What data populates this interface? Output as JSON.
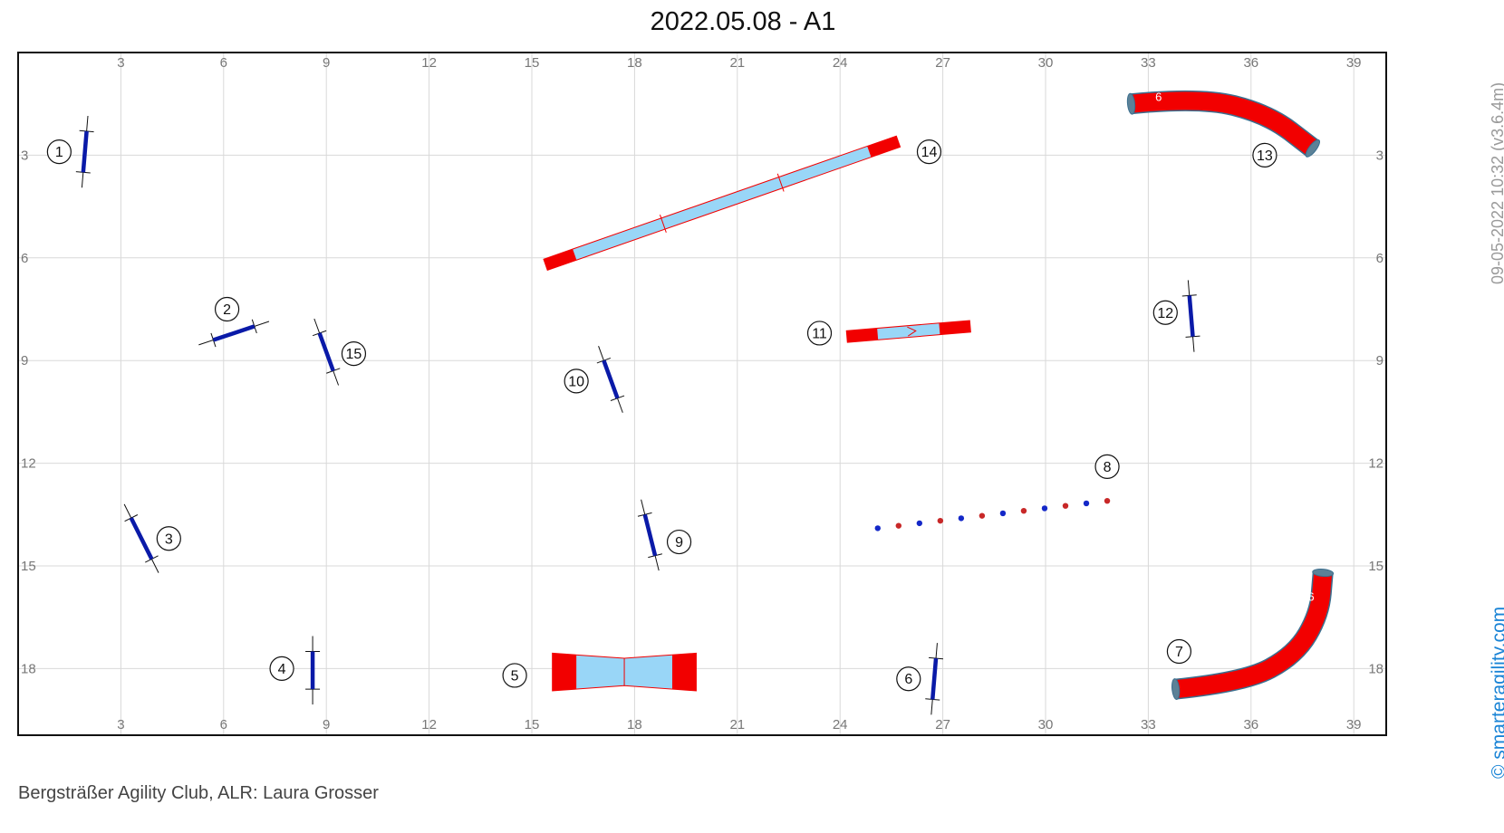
{
  "title": "2022.05.08 - A1",
  "footer": "Bergsträßer Agility Club, ALR: Laura Grosser",
  "side_timestamp": "09-05-2022 10:32 (v3.6.4m)",
  "brand": "© smarteragility.com",
  "colors": {
    "jump_bar": "#0a1aa8",
    "tunnel": "#f20000",
    "contact_zone": "#f20000",
    "contact_plank": "#99d6f7",
    "grid": "#d9d9d9",
    "weave_blue": "#1428c8",
    "weave_red": "#c82828"
  },
  "chart_data": {
    "type": "course-map",
    "units": "m",
    "x_ticks": [
      "3",
      "6",
      "9",
      "12",
      "15",
      "18",
      "21",
      "24",
      "27",
      "30",
      "33",
      "36",
      "39"
    ],
    "y_ticks": [
      "3",
      "6",
      "9",
      "12",
      "15",
      "18"
    ],
    "xlim": [
      0,
      40
    ],
    "ylim": [
      0,
      20
    ],
    "grid": true,
    "obstacles": [
      {
        "num": "1",
        "type": "jump",
        "x1": 2.0,
        "y1": 2.3,
        "x2": 1.9,
        "y2": 3.5,
        "label_x": 1.2,
        "label_y": 2.9
      },
      {
        "num": "2",
        "type": "jump",
        "x1": 5.7,
        "y1": 8.4,
        "x2": 6.9,
        "y2": 8.0,
        "label_x": 6.1,
        "label_y": 7.5
      },
      {
        "num": "3",
        "type": "jump",
        "x1": 3.3,
        "y1": 13.6,
        "x2": 3.9,
        "y2": 14.8,
        "label_x": 4.4,
        "label_y": 14.2
      },
      {
        "num": "4",
        "type": "jump",
        "x1": 8.6,
        "y1": 17.5,
        "x2": 8.6,
        "y2": 18.6,
        "label_x": 7.7,
        "label_y": 18.0
      },
      {
        "num": "5",
        "type": "table",
        "x1": 15.6,
        "x2": 19.8,
        "y_mid": 18.1,
        "y_half_end": 0.55,
        "y_half_mid": 0.4,
        "end_len": 0.7,
        "label_x": 14.5,
        "label_y": 18.2
      },
      {
        "num": "6",
        "type": "jump",
        "x1": 26.8,
        "y1": 17.7,
        "x2": 26.7,
        "y2": 18.9,
        "label_x": 26.0,
        "label_y": 18.3
      },
      {
        "num": "7",
        "type": "tunnel",
        "path": [
          [
            33.8,
            18.6
          ],
          [
            35.8,
            18.4
          ],
          [
            37.3,
            17.6
          ],
          [
            38.0,
            16.4
          ],
          [
            38.1,
            15.2
          ]
        ],
        "tunnel_label": "6",
        "tag_x": 37.75,
        "tag_y": 15.9,
        "label_x": 33.9,
        "label_y": 17.5
      },
      {
        "num": "8",
        "type": "weave",
        "x1": 25.1,
        "y1": 13.9,
        "x2": 31.8,
        "y2": 13.1,
        "poles": 12,
        "label_x": 31.8,
        "label_y": 12.1
      },
      {
        "num": "9",
        "type": "jump",
        "x1": 18.3,
        "y1": 13.5,
        "x2": 18.6,
        "y2": 14.7,
        "label_x": 19.3,
        "label_y": 14.3
      },
      {
        "num": "10",
        "type": "jump",
        "x1": 17.1,
        "y1": 9.0,
        "x2": 17.5,
        "y2": 10.1,
        "label_x": 16.3,
        "label_y": 9.6
      },
      {
        "num": "11",
        "type": "seesaw",
        "x1": 24.2,
        "y1": 8.3,
        "x2": 27.8,
        "y2": 8.0,
        "zone": 0.9,
        "width": 0.34,
        "label_x": 23.4,
        "label_y": 8.2
      },
      {
        "num": "12",
        "type": "jump",
        "x1": 34.2,
        "y1": 7.1,
        "x2": 34.3,
        "y2": 8.3,
        "label_x": 33.5,
        "label_y": 7.6
      },
      {
        "num": "13",
        "type": "tunnel",
        "path": [
          [
            32.5,
            1.5
          ],
          [
            34.5,
            1.3
          ],
          [
            36.5,
            1.8
          ],
          [
            37.8,
            2.8
          ]
        ],
        "tunnel_label": "6",
        "tag_x": 33.3,
        "tag_y": 1.3,
        "label_x": 36.4,
        "label_y": 3.0
      },
      {
        "num": "14",
        "type": "dogwalk",
        "x1": 15.4,
        "y1": 6.2,
        "x2": 25.7,
        "y2": 2.6,
        "zone": 0.9,
        "width": 0.34,
        "label_x": 26.6,
        "label_y": 2.9
      },
      {
        "num": "15",
        "type": "jump",
        "x1": 8.8,
        "y1": 8.2,
        "x2": 9.2,
        "y2": 9.3,
        "label_x": 9.8,
        "label_y": 8.8
      }
    ]
  }
}
